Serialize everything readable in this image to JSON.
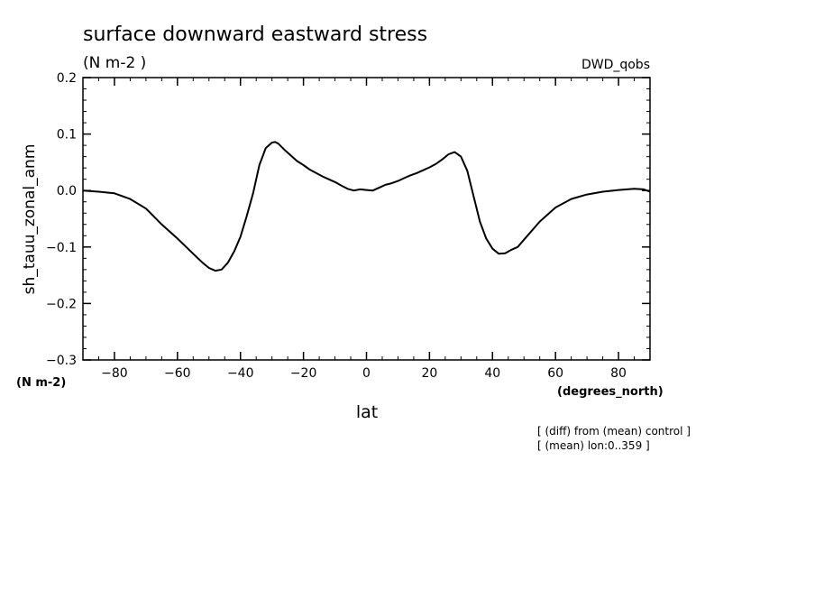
{
  "header": {
    "title": "surface downward eastward stress",
    "units": "(N m-2  )",
    "dataset": "DWD_qobs"
  },
  "notes": {
    "line1": "[ (diff) from (mean) control ]",
    "line2": "[ (mean) lon:0..359 ]"
  },
  "chart_data": {
    "type": "line",
    "title": "surface downward eastward stress",
    "xlabel": "lat",
    "xunit": "(degrees_north)",
    "ylabel": "sh_tauu_zonal_anm",
    "yunit": "(N m-2)",
    "xlim": [
      -90,
      90
    ],
    "ylim": [
      -0.3,
      0.2
    ],
    "xticks": [
      -80,
      -60,
      -40,
      -20,
      0,
      20,
      40,
      60,
      80
    ],
    "xtick_labels": [
      "−80",
      "−60",
      "−40",
      "−20",
      "0",
      "20",
      "40",
      "60",
      "80"
    ],
    "yticks": [
      0.2,
      0.1,
      0.0,
      -0.1,
      -0.2,
      -0.3
    ],
    "ytick_labels": [
      "0.2",
      "0.1",
      "0.0",
      "−0.1",
      "−0.2",
      "−0.3"
    ],
    "grid": false,
    "series": [
      {
        "color": "#000000",
        "x": [
          -90,
          -85,
          -80,
          -75,
          -70,
          -65,
          -60,
          -55,
          -52,
          -50,
          -48,
          -46,
          -44,
          -42,
          -40,
          -38,
          -36,
          -34,
          -32,
          -30,
          -29,
          -28,
          -26,
          -24,
          -22,
          -20,
          -18,
          -16,
          -14,
          -12,
          -10,
          -8,
          -6,
          -4,
          -2,
          0,
          2,
          4,
          6,
          8,
          10,
          12,
          14,
          16,
          18,
          20,
          22,
          24,
          26,
          28,
          30,
          32,
          34,
          36,
          38,
          40,
          42,
          44,
          46,
          48,
          50,
          55,
          60,
          65,
          70,
          75,
          80,
          85,
          88,
          90
        ],
        "y": [
          0.0,
          -0.002,
          -0.005,
          -0.015,
          -0.032,
          -0.06,
          -0.085,
          -0.112,
          -0.128,
          -0.137,
          -0.142,
          -0.14,
          -0.128,
          -0.108,
          -0.082,
          -0.045,
          -0.005,
          0.045,
          0.075,
          0.085,
          0.086,
          0.083,
          0.072,
          0.062,
          0.052,
          0.045,
          0.037,
          0.031,
          0.025,
          0.02,
          0.015,
          0.009,
          0.003,
          0.0,
          0.002,
          0.001,
          0.0,
          0.005,
          0.01,
          0.013,
          0.017,
          0.022,
          0.027,
          0.031,
          0.036,
          0.041,
          0.047,
          0.055,
          0.064,
          0.068,
          0.06,
          0.035,
          -0.01,
          -0.055,
          -0.085,
          -0.103,
          -0.112,
          -0.111,
          -0.105,
          -0.1,
          -0.087,
          -0.055,
          -0.03,
          -0.015,
          -0.007,
          -0.002,
          0.001,
          0.003,
          0.002,
          -0.002
        ]
      }
    ]
  }
}
